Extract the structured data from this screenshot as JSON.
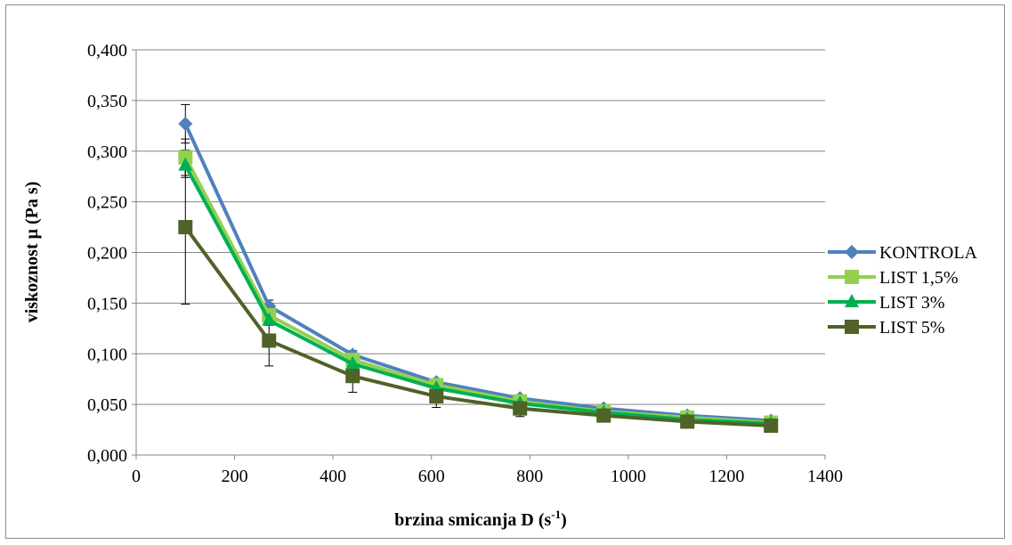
{
  "chart_data": {
    "type": "line",
    "title": "",
    "xlabel": "brzina smicanja D (s",
    "xlabel_sup": "-1",
    "xlabel_end": ")",
    "ylabel": "viskoznost μ (Pa s)",
    "xlim": [
      0,
      1400
    ],
    "ylim": [
      0,
      0.4
    ],
    "x_ticks": [
      "0",
      "200",
      "400",
      "600",
      "800",
      "1000",
      "1200",
      "1400"
    ],
    "y_ticks": [
      "0,000",
      "0,050",
      "0,100",
      "0,150",
      "0,200",
      "0,250",
      "0,300",
      "0,350",
      "0,400"
    ],
    "grid": "horizontal",
    "legend_position": "right",
    "x": [
      100,
      270,
      440,
      610,
      780,
      950,
      1120,
      1290
    ],
    "series": [
      {
        "name": "KONTROLA",
        "color": "#4f81bd",
        "marker": "diamond",
        "values": [
          0.327,
          0.147,
          0.099,
          0.072,
          0.056,
          0.046,
          0.039,
          0.034
        ],
        "error": [
          0.019,
          0.006,
          0.004,
          0.003,
          0.002,
          0.002,
          0.002,
          0.002
        ]
      },
      {
        "name": "LIST 1,5%",
        "color": "#92d050",
        "marker": "square",
        "values": [
          0.294,
          0.138,
          0.094,
          0.069,
          0.053,
          0.043,
          0.037,
          0.032
        ],
        "error": [
          0.018,
          0.006,
          0.004,
          0.003,
          0.002,
          0.002,
          0.002,
          0.002
        ]
      },
      {
        "name": "LIST 3%",
        "color": "#00b050",
        "marker": "triangle",
        "values": [
          0.286,
          0.133,
          0.09,
          0.066,
          0.051,
          0.042,
          0.035,
          0.031
        ],
        "error": [
          0.012,
          0.005,
          0.004,
          0.003,
          0.002,
          0.002,
          0.002,
          0.002
        ]
      },
      {
        "name": "LIST 5%",
        "color": "#4f6228",
        "marker": "square",
        "values": [
          0.225,
          0.113,
          0.078,
          0.058,
          0.046,
          0.039,
          0.033,
          0.029
        ],
        "error": [
          0.076,
          0.025,
          0.016,
          0.011,
          0.008,
          0.004,
          0.003,
          0.003
        ]
      }
    ]
  }
}
